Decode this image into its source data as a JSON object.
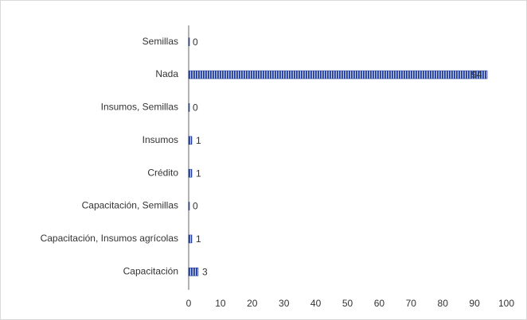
{
  "chart_data": {
    "type": "hbar",
    "categories": [
      "Semillas",
      "Nada",
      "Insumos, Semillas",
      "Insumos",
      "Crédito",
      "Capacitación, Semillas",
      "Capacitación, Insumos agrícolas",
      "Capacitación"
    ],
    "values": [
      0,
      94,
      0,
      1,
      1,
      0,
      1,
      3
    ],
    "color": "#1f3c9a",
    "xlim": [
      0,
      100
    ],
    "xticks": [
      0,
      10,
      20,
      30,
      40,
      50,
      60,
      70,
      80,
      90,
      100
    ],
    "grid": false
  }
}
